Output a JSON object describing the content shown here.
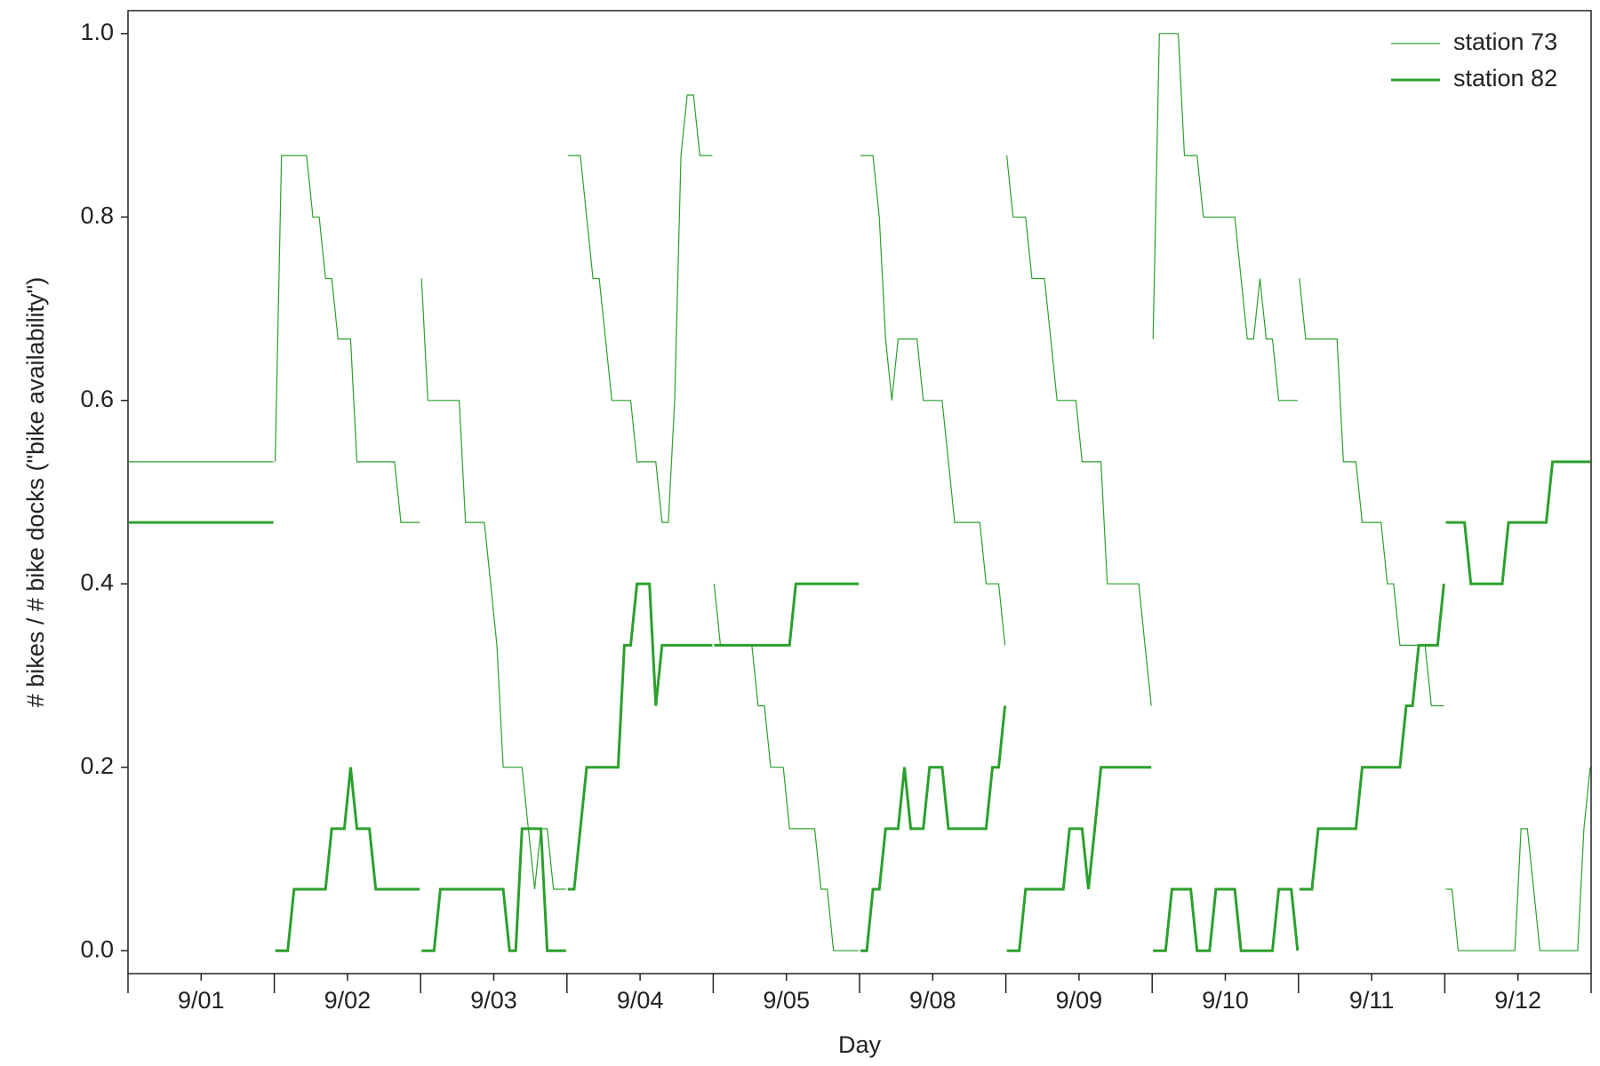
{
  "chart_data": {
    "type": "line",
    "xlabel": "Day",
    "ylabel": "# bikes / # bike docks (\"bike availability\")",
    "categories": [
      "9/01",
      "9/02",
      "9/03",
      "9/04",
      "9/05",
      "9/08",
      "9/09",
      "9/10",
      "9/11",
      "9/12"
    ],
    "ylim": [
      -0.025,
      1.025
    ],
    "yticks": [
      {
        "value": 0,
        "label": "0.0"
      },
      0.2,
      0.4,
      0.6,
      0.8,
      {
        "value": 1,
        "label": "1.0"
      }
    ],
    "legend": "upper right",
    "series": [
      {
        "name": "station 73",
        "color": "#2ca02c",
        "linewidth": 1.2,
        "values": [
          [
            0.533,
            0.533,
            0.533,
            0.533,
            0.533,
            0.533,
            0.533,
            0.533,
            0.533,
            0.533,
            0.533,
            0.533,
            0.533,
            0.533,
            0.533,
            0.533,
            0.533,
            0.533,
            0.533,
            0.533,
            0.533,
            0.533,
            0.533,
            0.533
          ],
          [
            0.533,
            0.867,
            0.867,
            0.867,
            0.867,
            0.867,
            0.8,
            0.8,
            0.733,
            0.733,
            0.667,
            0.667,
            0.667,
            0.533,
            0.533,
            0.533,
            0.533,
            0.533,
            0.533,
            0.533,
            0.467,
            0.467,
            0.467,
            0.467
          ],
          [
            0.733,
            0.6,
            0.6,
            0.6,
            0.6,
            0.6,
            0.6,
            0.467,
            0.467,
            0.467,
            0.467,
            0.4,
            0.333,
            0.2,
            0.2,
            0.2,
            0.2,
            0.133,
            0.067,
            0.133,
            0.133,
            0.067,
            0.067,
            0.067
          ],
          [
            0.867,
            0.867,
            0.867,
            0.8,
            0.733,
            0.733,
            0.667,
            0.6,
            0.6,
            0.6,
            0.6,
            0.533,
            0.533,
            0.533,
            0.533,
            0.467,
            0.467,
            0.6,
            0.867,
            0.933,
            0.933,
            0.867,
            0.867,
            0.867
          ],
          [
            0.4,
            0.333,
            0.333,
            0.333,
            0.333,
            0.333,
            0.333,
            0.267,
            0.267,
            0.2,
            0.2,
            0.2,
            0.133,
            0.133,
            0.133,
            0.133,
            0.133,
            0.067,
            0.067,
            0,
            0,
            0,
            0,
            0
          ],
          [
            0.867,
            0.867,
            0.867,
            0.8,
            0.667,
            0.6,
            0.667,
            0.667,
            0.667,
            0.667,
            0.6,
            0.6,
            0.6,
            0.6,
            0.533,
            0.467,
            0.467,
            0.467,
            0.467,
            0.467,
            0.4,
            0.4,
            0.4,
            0.333
          ],
          [
            0.867,
            0.8,
            0.8,
            0.8,
            0.733,
            0.733,
            0.733,
            0.667,
            0.6,
            0.6,
            0.6,
            0.6,
            0.533,
            0.533,
            0.533,
            0.533,
            0.4,
            0.4,
            0.4,
            0.4,
            0.4,
            0.4,
            0.333,
            0.267
          ],
          [
            0.667,
            1,
            1,
            1,
            1,
            0.867,
            0.867,
            0.867,
            0.8,
            0.8,
            0.8,
            0.8,
            0.8,
            0.8,
            0.733,
            0.667,
            0.667,
            0.733,
            0.667,
            0.667,
            0.6,
            0.6,
            0.6,
            0.6
          ],
          [
            0.733,
            0.667,
            0.667,
            0.667,
            0.667,
            0.667,
            0.667,
            0.533,
            0.533,
            0.533,
            0.467,
            0.467,
            0.467,
            0.467,
            0.4,
            0.4,
            0.333,
            0.333,
            0.333,
            0.333,
            0.333,
            0.267,
            0.267,
            0.267
          ],
          [
            0.067,
            0.067,
            0,
            0,
            0,
            0,
            0,
            0,
            0,
            0,
            0,
            0,
            0.133,
            0.133,
            0.067,
            0,
            0,
            0,
            0,
            0,
            0,
            0,
            0.133,
            0.2
          ]
        ]
      },
      {
        "name": "station 82",
        "color": "#2ca02c",
        "linewidth": 3,
        "values": [
          [
            0.467,
            0.467,
            0.467,
            0.467,
            0.467,
            0.467,
            0.467,
            0.467,
            0.467,
            0.467,
            0.467,
            0.467,
            0.467,
            0.467,
            0.467,
            0.467,
            0.467,
            0.467,
            0.467,
            0.467,
            0.467,
            0.467,
            0.467,
            0.467
          ],
          [
            0,
            0,
            0,
            0.067,
            0.067,
            0.067,
            0.067,
            0.067,
            0.067,
            0.133,
            0.133,
            0.133,
            0.2,
            0.133,
            0.133,
            0.133,
            0.067,
            0.067,
            0.067,
            0.067,
            0.067,
            0.067,
            0.067,
            0.067
          ],
          [
            0,
            0,
            0,
            0.067,
            0.067,
            0.067,
            0.067,
            0.067,
            0.067,
            0.067,
            0.067,
            0.067,
            0.067,
            0.067,
            0,
            0,
            0.133,
            0.133,
            0.133,
            0.133,
            0,
            0,
            0,
            0
          ],
          [
            0.067,
            0.067,
            0.133,
            0.2,
            0.2,
            0.2,
            0.2,
            0.2,
            0.2,
            0.333,
            0.333,
            0.4,
            0.4,
            0.4,
            0.267,
            0.333,
            0.333,
            0.333,
            0.333,
            0.333,
            0.333,
            0.333,
            0.333,
            0.333
          ],
          [
            0.333,
            0.333,
            0.333,
            0.333,
            0.333,
            0.333,
            0.333,
            0.333,
            0.333,
            0.333,
            0.333,
            0.333,
            0.333,
            0.4,
            0.4,
            0.4,
            0.4,
            0.4,
            0.4,
            0.4,
            0.4,
            0.4,
            0.4,
            0.4
          ],
          [
            0,
            0,
            0.067,
            0.067,
            0.133,
            0.133,
            0.133,
            0.2,
            0.133,
            0.133,
            0.133,
            0.2,
            0.2,
            0.2,
            0.133,
            0.133,
            0.133,
            0.133,
            0.133,
            0.133,
            0.133,
            0.2,
            0.2,
            0.267
          ],
          [
            0,
            0,
            0,
            0.067,
            0.067,
            0.067,
            0.067,
            0.067,
            0.067,
            0.067,
            0.133,
            0.133,
            0.133,
            0.067,
            0.133,
            0.2,
            0.2,
            0.2,
            0.2,
            0.2,
            0.2,
            0.2,
            0.2,
            0.2
          ],
          [
            0,
            0,
            0,
            0.067,
            0.067,
            0.067,
            0.067,
            0,
            0,
            0,
            0.067,
            0.067,
            0.067,
            0.067,
            0,
            0,
            0,
            0,
            0,
            0,
            0.067,
            0.067,
            0.067,
            0
          ],
          [
            0.067,
            0.067,
            0.067,
            0.133,
            0.133,
            0.133,
            0.133,
            0.133,
            0.133,
            0.133,
            0.2,
            0.2,
            0.2,
            0.2,
            0.2,
            0.2,
            0.2,
            0.267,
            0.267,
            0.333,
            0.333,
            0.333,
            0.333,
            0.4
          ],
          [
            0.467,
            0.467,
            0.467,
            0.467,
            0.4,
            0.4,
            0.4,
            0.4,
            0.4,
            0.4,
            0.467,
            0.467,
            0.467,
            0.467,
            0.467,
            0.467,
            0.467,
            0.533,
            0.533,
            0.533,
            0.533,
            0.533,
            0.533,
            0.533
          ]
        ]
      }
    ]
  }
}
